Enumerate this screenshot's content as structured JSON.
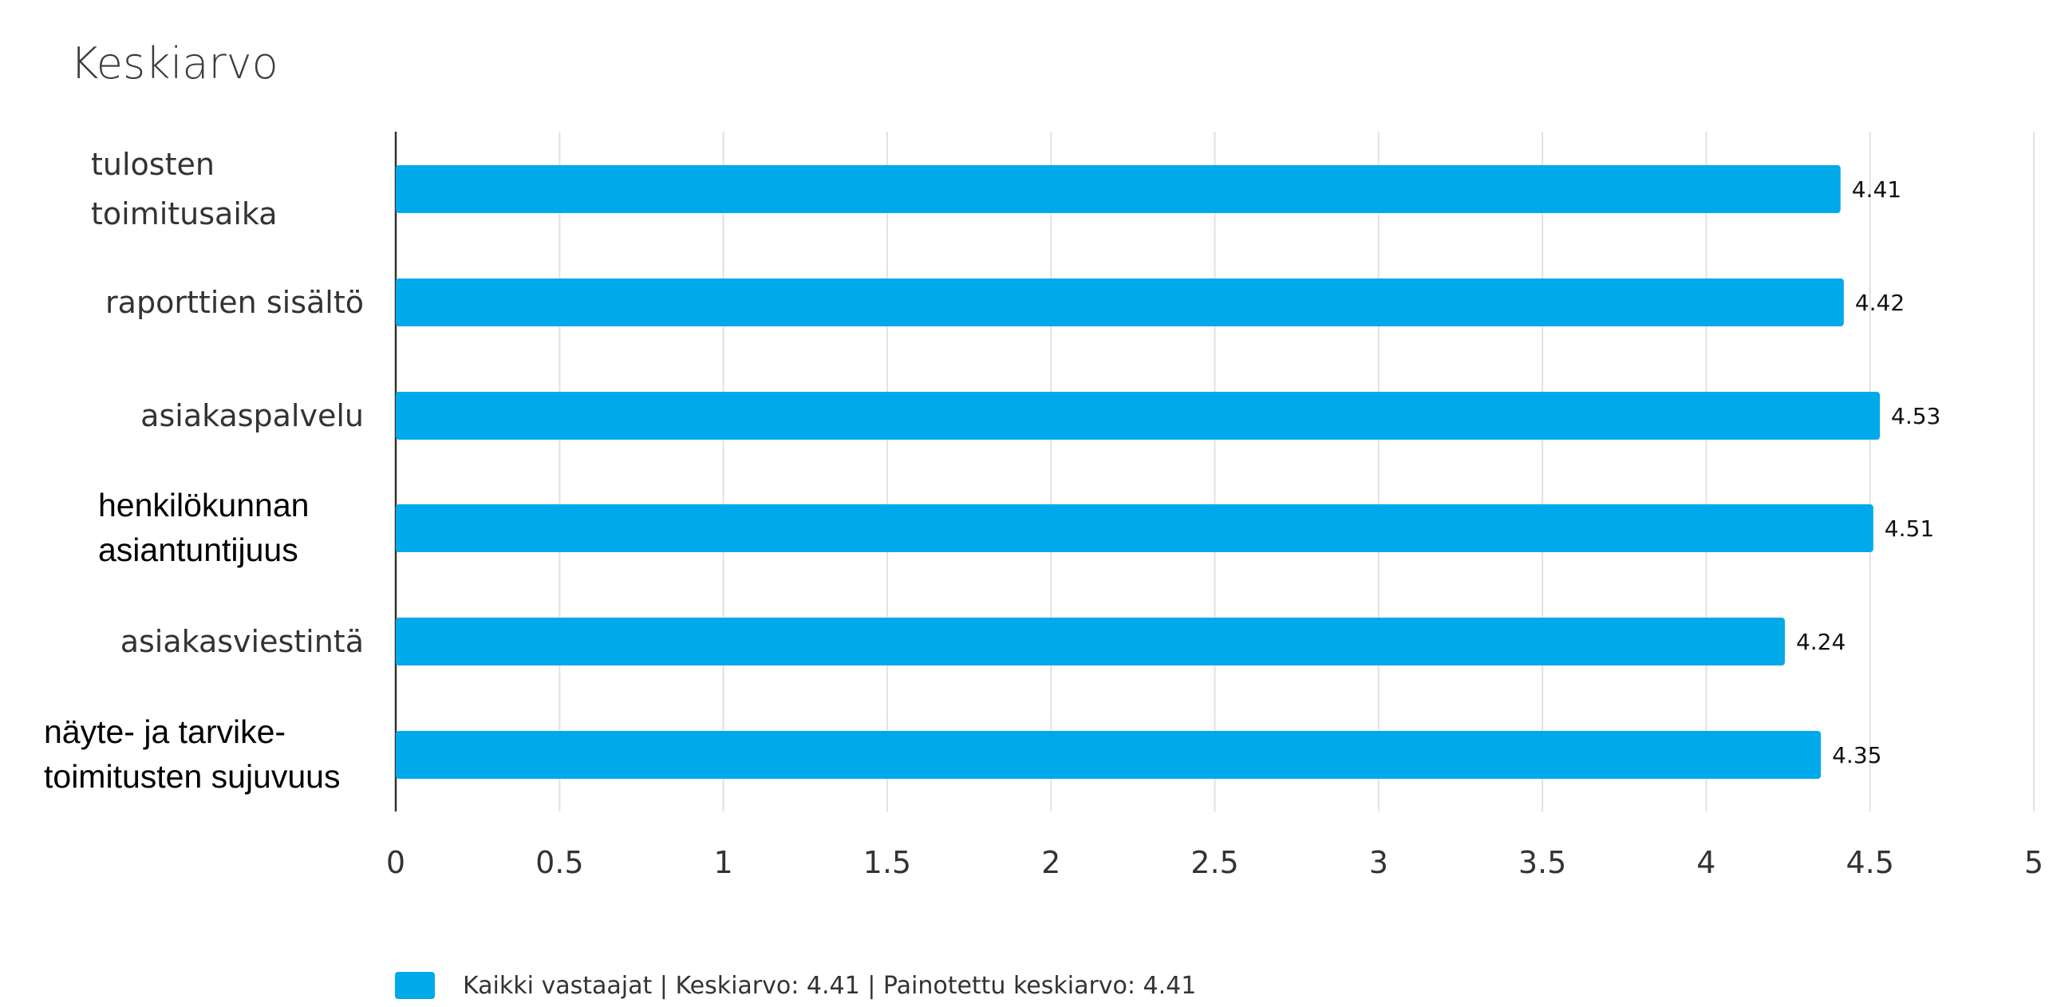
{
  "chart_data": {
    "type": "bar",
    "orientation": "horizontal",
    "title": "Keskiarvo",
    "categories": [
      [
        "tulosten",
        "toimitusaika"
      ],
      [
        "raporttien sisältö"
      ],
      [
        "asiakaspalvelu"
      ],
      [
        "henkilökunnan",
        "asiantuntijuus"
      ],
      [
        "asiakasviestintä"
      ],
      [
        "näyte- ja tarvike-",
        "toimitusten sujuvuus"
      ]
    ],
    "series": [
      {
        "name": "Kaikki vastaajat | Keskiarvo: 4.41 | Painotettu keskiarvo: 4.41",
        "color": "#00aaea",
        "values": [
          4.41,
          4.42,
          4.53,
          4.51,
          4.24,
          4.35
        ]
      }
    ],
    "data_labels": [
      "4.41",
      "4.42",
      "4.53",
      "4.51",
      "4.24",
      "4.35"
    ],
    "xlim": [
      0,
      5
    ],
    "x_ticks": [
      "0",
      "0.5",
      "1",
      "1.5",
      "2",
      "2.5",
      "3",
      "3.5",
      "4",
      "4.5",
      "5"
    ],
    "grid": "vertical",
    "legend": "bottom-left"
  }
}
